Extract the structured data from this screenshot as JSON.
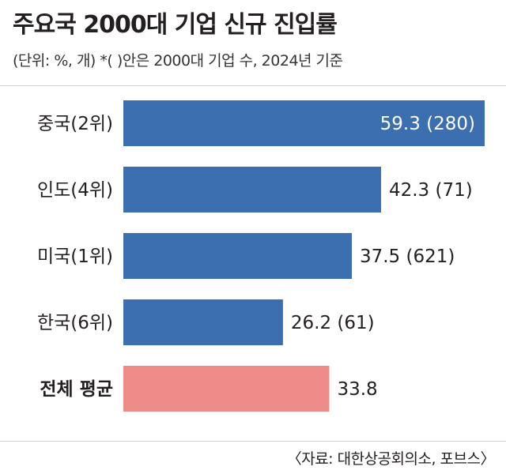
{
  "header": {
    "title": "주요국 2000대 기업 신규 진입률",
    "subtitle": "(단위: %, 개)  *( )안은 2000대 기업 수,   2024년 기준"
  },
  "footer": {
    "source": "〈자료: 대한상공회의소, 포브스〉"
  },
  "chart_data": {
    "type": "bar",
    "orientation": "horizontal",
    "title": "주요국 2000대 기업 신규 진입률",
    "categories": [
      "중국(2위)",
      "인도(4위)",
      "미국(1위)",
      "한국(6위)",
      "전체 평균"
    ],
    "values": [
      59.3,
      42.3,
      37.5,
      26.2,
      33.8
    ],
    "value_labels": [
      "59.3 (280)",
      "42.3 (71)",
      "37.5 (621)",
      "26.2 (61)",
      "33.8"
    ],
    "company_counts": [
      280,
      71,
      621,
      61,
      null
    ],
    "colors": [
      "#3b6fb0",
      "#3b6fb0",
      "#3b6fb0",
      "#3b6fb0",
      "#ec8b87"
    ],
    "grid": false,
    "legend": "none"
  }
}
